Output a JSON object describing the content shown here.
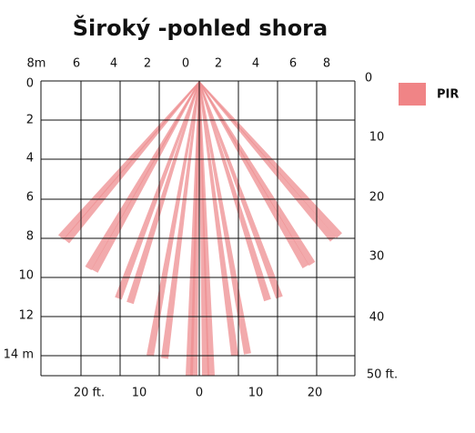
{
  "header": {
    "title": "Široký -pohled shora"
  },
  "top_axis": {
    "labels": [
      "8m",
      "6",
      "4",
      "2",
      "0",
      "2",
      "4",
      "6",
      "8"
    ]
  },
  "left_axis": {
    "labels": [
      "0",
      "2",
      "4",
      "6",
      "8",
      "10",
      "12",
      "14 m"
    ]
  },
  "right_axis": {
    "labels": [
      "0",
      "10",
      "20",
      "30",
      "40",
      "50 ft."
    ]
  },
  "bottom_axis": {
    "labels": [
      "20 ft.",
      "10",
      "0",
      "10",
      "20"
    ]
  },
  "legend": {
    "label": "PIR"
  }
}
